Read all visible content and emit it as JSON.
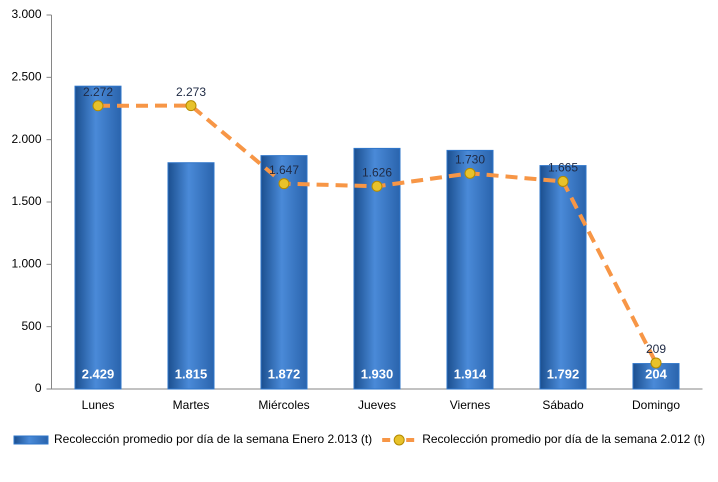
{
  "chart_data": {
    "type": "bar",
    "categories": [
      "Lunes",
      "Martes",
      "Miércoles",
      "Jueves",
      "Viernes",
      "Sábado",
      "Domingo"
    ],
    "series": [
      {
        "name": "Recolección promedio por día de la semana Enero 2.013 (t)",
        "type": "bar",
        "color": "#2e75c9",
        "values": [
          2429,
          1815,
          1872,
          1930,
          1914,
          1792,
          204
        ],
        "value_labels": [
          "2.429",
          "1.815",
          "1.872",
          "1.930",
          "1.914",
          "1.792",
          "204"
        ]
      },
      {
        "name": "Recolección promedio por día de la semana 2.012 (t)",
        "type": "line",
        "color": "#f79646",
        "values": [
          2272,
          2273,
          1647,
          1626,
          1730,
          1665,
          209
        ],
        "value_labels": [
          "2.272",
          "2.273",
          "1.647",
          "1.626",
          "1.730",
          "1.665",
          "209"
        ]
      }
    ],
    "ylim": [
      0,
      3000
    ],
    "yticks": [
      0,
      500,
      {
        "value": 1000,
        "label": "1.000"
      },
      {
        "value": 1500,
        "label": "1.500"
      },
      {
        "value": 2000,
        "label": "2.000"
      },
      {
        "value": 2500,
        "label": "2.500"
      },
      {
        "value": 3000,
        "label": "3.000"
      }
    ],
    "grid": false,
    "legend": "bottom"
  }
}
